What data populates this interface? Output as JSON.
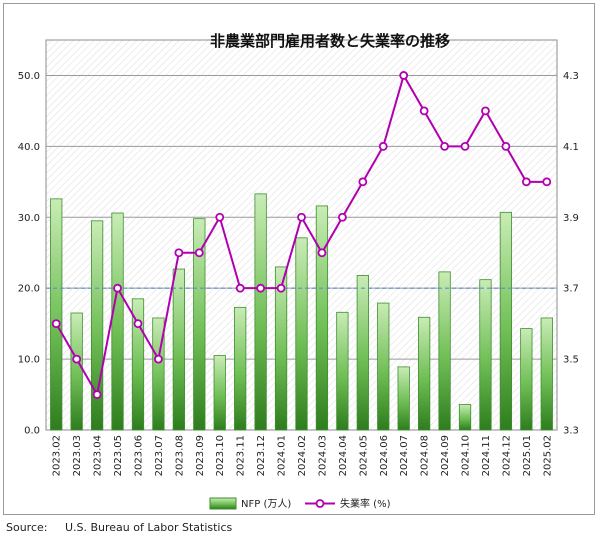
{
  "source": "Source:     U.S. Bureau of Labor Statistics",
  "chart_data": {
    "type": "bar",
    "title": "非農業部門雇用者数と失業率の推移",
    "categories": [
      "2023.02",
      "2023.03",
      "2023.04",
      "2023.05",
      "2023.06",
      "2023.07",
      "2023.08",
      "2023.09",
      "2023.10",
      "2023.11",
      "2023.12",
      "2024.01",
      "2024.02",
      "2024.03",
      "2024.04",
      "2024.05",
      "2024.06",
      "2024.07",
      "2024.08",
      "2024.09",
      "2024.10",
      "2024.11",
      "2024.12",
      "2025.01",
      "2025.02"
    ],
    "series": [
      {
        "name": "NFP (万人)",
        "type": "bar",
        "axis": "left",
        "values": [
          32.6,
          16.5,
          29.5,
          30.6,
          18.5,
          15.8,
          22.7,
          29.8,
          10.5,
          17.3,
          33.3,
          23.0,
          27.1,
          31.6,
          16.6,
          21.8,
          17.9,
          8.9,
          15.9,
          22.3,
          3.6,
          21.2,
          30.7,
          14.3,
          15.8
        ]
      },
      {
        "name": "失業率 (%)",
        "type": "line",
        "axis": "right",
        "values": [
          3.6,
          3.5,
          3.4,
          3.7,
          3.6,
          3.5,
          3.8,
          3.8,
          3.9,
          3.7,
          3.7,
          3.7,
          3.9,
          3.8,
          3.9,
          4.0,
          4.1,
          4.3,
          4.2,
          4.1,
          4.1,
          4.2,
          4.1,
          4.0,
          4.0
        ]
      }
    ],
    "y_left": {
      "ylim": [
        0,
        55
      ],
      "ticks": [
        "0.0",
        "10.0",
        "20.0",
        "30.0",
        "40.0",
        "50.0"
      ]
    },
    "y_right": {
      "ylim": [
        3.3,
        4.4
      ],
      "ticks": [
        "3.3",
        "3.5",
        "3.7",
        "3.9",
        "4.1",
        "4.3"
      ]
    },
    "reference_line": {
      "axis": "left",
      "value": 20
    },
    "grid": true,
    "legend": "bottom",
    "colors": {
      "bar_top": "#c9ecb6",
      "bar_bottom": "#2e7d1e",
      "bar_edge": "#3e8e2e",
      "line": "#b000b0",
      "marker_fill": "#ffffff",
      "ref_line": "#5b8ec9",
      "hatch": "#dcdcdc"
    }
  }
}
